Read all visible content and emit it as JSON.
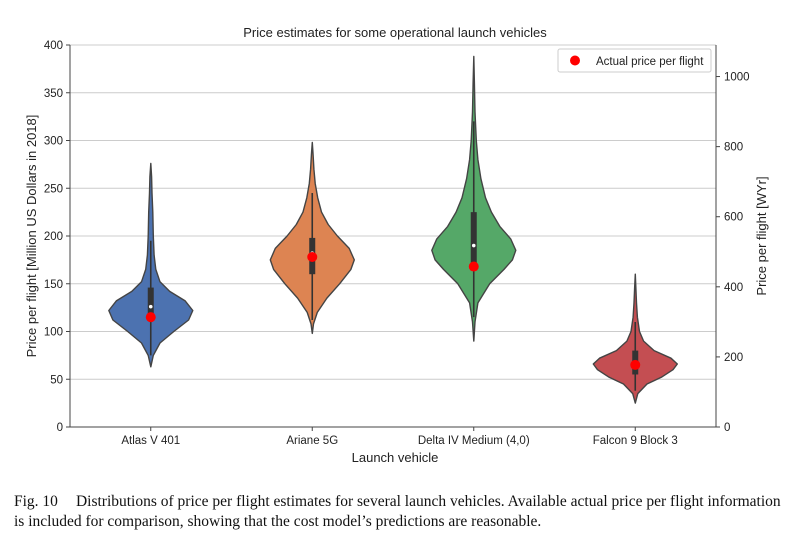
{
  "chart_data": {
    "type": "violin",
    "title": "Price estimates for some operational launch vehicles",
    "xlabel": "Launch vehicle",
    "ylabel": "Price per flight [Million US Dollars in 2018]",
    "ylabel_right": "Price per flight [WYr]",
    "ylim": [
      0,
      400
    ],
    "yticks": [
      0,
      50,
      100,
      150,
      200,
      250,
      300,
      350,
      400
    ],
    "ylim_right": [
      0,
      1090
    ],
    "yticks_right": [
      0,
      200,
      400,
      600,
      800,
      1000
    ],
    "grid": true,
    "legend": {
      "placement": "top-right",
      "entries": [
        "Actual price per flight"
      ]
    },
    "categories": [
      "Atlas V 401",
      "Ariane 5G",
      "Delta IV Medium (4,0)",
      "Falcon 9 Block 3"
    ],
    "colors": [
      "#4c72b0",
      "#dd8452",
      "#55a868",
      "#c44e52"
    ],
    "actual_color": "#ff0000",
    "violins": [
      {
        "min": 63,
        "max": 276,
        "q1": 112,
        "median": 126,
        "q3": 146,
        "whisker_low": 75,
        "whisker_high": 195,
        "actual": 115,
        "profile": [
          [
            63,
            0
          ],
          [
            75,
            0.06
          ],
          [
            88,
            0.22
          ],
          [
            100,
            0.55
          ],
          [
            112,
            0.9
          ],
          [
            122,
            1.0
          ],
          [
            132,
            0.82
          ],
          [
            142,
            0.45
          ],
          [
            152,
            0.22
          ],
          [
            165,
            0.12
          ],
          [
            180,
            0.08
          ],
          [
            200,
            0.06
          ],
          [
            225,
            0.05
          ],
          [
            245,
            0.03
          ],
          [
            262,
            0.02
          ],
          [
            276,
            0
          ]
        ]
      },
      {
        "min": 98,
        "max": 298,
        "q1": 160,
        "median": 182,
        "q3": 198,
        "whisker_low": 112,
        "whisker_high": 245,
        "actual": 178,
        "profile": [
          [
            98,
            0
          ],
          [
            108,
            0.03
          ],
          [
            120,
            0.12
          ],
          [
            135,
            0.35
          ],
          [
            150,
            0.65
          ],
          [
            165,
            0.92
          ],
          [
            175,
            1.0
          ],
          [
            187,
            0.88
          ],
          [
            200,
            0.6
          ],
          [
            212,
            0.38
          ],
          [
            225,
            0.22
          ],
          [
            240,
            0.13
          ],
          [
            255,
            0.07
          ],
          [
            270,
            0.04
          ],
          [
            285,
            0.02
          ],
          [
            298,
            0
          ]
        ]
      },
      {
        "min": 90,
        "max": 388,
        "q1": 168,
        "median": 190,
        "q3": 225,
        "whisker_low": 115,
        "whisker_high": 320,
        "actual": 168,
        "profile": [
          [
            90,
            0
          ],
          [
            110,
            0.03
          ],
          [
            130,
            0.1
          ],
          [
            150,
            0.38
          ],
          [
            165,
            0.72
          ],
          [
            175,
            0.92
          ],
          [
            185,
            1.0
          ],
          [
            197,
            0.88
          ],
          [
            210,
            0.62
          ],
          [
            225,
            0.42
          ],
          [
            240,
            0.28
          ],
          [
            260,
            0.17
          ],
          [
            280,
            0.1
          ],
          [
            300,
            0.06
          ],
          [
            330,
            0.03
          ],
          [
            360,
            0.015
          ],
          [
            388,
            0
          ]
        ]
      },
      {
        "min": 25,
        "max": 160,
        "q1": 55,
        "median": 67,
        "q3": 80,
        "whisker_low": 38,
        "whisker_high": 110,
        "actual": 65,
        "profile": [
          [
            25,
            0
          ],
          [
            35,
            0.06
          ],
          [
            45,
            0.28
          ],
          [
            52,
            0.62
          ],
          [
            60,
            0.9
          ],
          [
            66,
            1.0
          ],
          [
            72,
            0.85
          ],
          [
            80,
            0.45
          ],
          [
            90,
            0.2
          ],
          [
            100,
            0.1
          ],
          [
            115,
            0.05
          ],
          [
            130,
            0.03
          ],
          [
            145,
            0.015
          ],
          [
            160,
            0
          ]
        ]
      }
    ]
  },
  "caption": {
    "label": "Fig. 10",
    "text": "Distributions of price per flight estimates for several launch vehicles. Available actual price per flight information is included for comparison, showing that the cost model’s predictions are reasonable."
  }
}
